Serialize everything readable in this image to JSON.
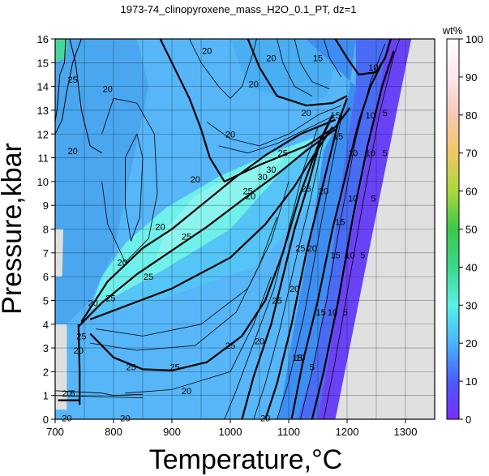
{
  "chart_data": {
    "type": "heatmap",
    "title": "1973-74_clinopyroxene_mass_H2O_0.1_PT, dz=1",
    "xlabel": "Temperature,°C",
    "ylabel": "Pressure,kbar",
    "xlim": [
      700,
      1350
    ],
    "ylim": [
      0,
      16
    ],
    "x_ticks": [
      700,
      800,
      900,
      1000,
      1100,
      1200,
      1300
    ],
    "y_ticks": [
      0,
      1,
      2,
      3,
      4,
      5,
      6,
      7,
      8,
      9,
      10,
      11,
      12,
      13,
      14,
      15,
      16
    ],
    "grid": true,
    "colorbar": {
      "label": "wt%",
      "range": [
        0,
        100
      ],
      "ticks": [
        0,
        10,
        20,
        30,
        40,
        50,
        60,
        70,
        80,
        90,
        100
      ],
      "stops": [
        {
          "value": 0,
          "color": "#7b2cff"
        },
        {
          "value": 10,
          "color": "#4b5cff"
        },
        {
          "value": 20,
          "color": "#49b4ff"
        },
        {
          "value": 30,
          "color": "#58f0e6"
        },
        {
          "value": 40,
          "color": "#3cd88a"
        },
        {
          "value": 50,
          "color": "#3cc84a"
        },
        {
          "value": 60,
          "color": "#a8d83c"
        },
        {
          "value": 70,
          "color": "#f0c864"
        },
        {
          "value": 80,
          "color": "#f8c8b4"
        },
        {
          "value": 90,
          "color": "#fce6f0"
        },
        {
          "value": 100,
          "color": "#ffffff"
        }
      ]
    },
    "no_data_color": "#e0e0e0",
    "contour_labels": [
      {
        "text": "20",
        "x": 1070,
        "y": 15.2
      },
      {
        "text": "20",
        "x": 960,
        "y": 15.5
      },
      {
        "text": "25",
        "x": 730,
        "y": 14.3
      },
      {
        "text": "20",
        "x": 790,
        "y": 13.9
      },
      {
        "text": "20",
        "x": 1040,
        "y": 14.1
      },
      {
        "text": "15",
        "x": 1150,
        "y": 15.2
      },
      {
        "text": "10",
        "x": 1245,
        "y": 14.8
      },
      {
        "text": "20",
        "x": 1130,
        "y": 12.9
      },
      {
        "text": "15",
        "x": 1180,
        "y": 12.8
      },
      {
        "text": "10",
        "x": 1240,
        "y": 12.8
      },
      {
        "text": "5",
        "x": 1265,
        "y": 12.9
      },
      {
        "text": "20",
        "x": 1000,
        "y": 12.0
      },
      {
        "text": "20",
        "x": 730,
        "y": 11.3
      },
      {
        "text": "15",
        "x": 1185,
        "y": 11.9
      },
      {
        "text": "10",
        "x": 1210,
        "y": 11.2
      },
      {
        "text": "10",
        "x": 1240,
        "y": 11.2
      },
      {
        "text": "5",
        "x": 1265,
        "y": 11.2
      },
      {
        "text": "25",
        "x": 1090,
        "y": 11.2
      },
      {
        "text": "20",
        "x": 940,
        "y": 10.1
      },
      {
        "text": "30",
        "x": 1055,
        "y": 10.2
      },
      {
        "text": "30",
        "x": 1070,
        "y": 10.5
      },
      {
        "text": "25",
        "x": 1030,
        "y": 9.6
      },
      {
        "text": "20",
        "x": 1035,
        "y": 9.4
      },
      {
        "text": "25",
        "x": 1130,
        "y": 9.7
      },
      {
        "text": "20",
        "x": 1160,
        "y": 9.6
      },
      {
        "text": "15",
        "x": 1188,
        "y": 8.3
      },
      {
        "text": "10",
        "x": 1210,
        "y": 9.3
      },
      {
        "text": "5",
        "x": 1245,
        "y": 9.3
      },
      {
        "text": "20",
        "x": 880,
        "y": 8.1
      },
      {
        "text": "25",
        "x": 925,
        "y": 7.7
      },
      {
        "text": "25",
        "x": 1120,
        "y": 7.2
      },
      {
        "text": "20",
        "x": 1140,
        "y": 7.2
      },
      {
        "text": "15",
        "x": 1180,
        "y": 6.9
      },
      {
        "text": "10",
        "x": 1205,
        "y": 6.9
      },
      {
        "text": "5",
        "x": 1227,
        "y": 6.9
      },
      {
        "text": "20",
        "x": 815,
        "y": 6.6
      },
      {
        "text": "25",
        "x": 860,
        "y": 6.0
      },
      {
        "text": "25",
        "x": 1080,
        "y": 5.0
      },
      {
        "text": "20",
        "x": 1110,
        "y": 5.5
      },
      {
        "text": "15",
        "x": 1155,
        "y": 4.5
      },
      {
        "text": "10",
        "x": 1175,
        "y": 4.5
      },
      {
        "text": "5",
        "x": 1197,
        "y": 4.5
      },
      {
        "text": "25",
        "x": 795,
        "y": 5.1
      },
      {
        "text": "20",
        "x": 765,
        "y": 4.9
      },
      {
        "text": "25",
        "x": 745,
        "y": 3.5
      },
      {
        "text": "20",
        "x": 740,
        "y": 2.9
      },
      {
        "text": "25",
        "x": 1000,
        "y": 3.1
      },
      {
        "text": "20",
        "x": 1050,
        "y": 3.3
      },
      {
        "text": "15",
        "x": 1115,
        "y": 2.6
      },
      {
        "text": "10",
        "x": 1120,
        "y": 2.6
      },
      {
        "text": "5",
        "x": 1140,
        "y": 2.2
      },
      {
        "text": "25",
        "x": 830,
        "y": 2.2
      },
      {
        "text": "25",
        "x": 905,
        "y": 2.2
      },
      {
        "text": "20",
        "x": 925,
        "y": 1.2
      },
      {
        "text": "20",
        "x": 720,
        "y": 1.1
      },
      {
        "text": "5",
        "x": 730,
        "y": 1.1
      },
      {
        "text": "20",
        "x": 720,
        "y": 0.05
      },
      {
        "text": "20",
        "x": 820,
        "y": 0.05
      },
      {
        "text": "20",
        "x": 1060,
        "y": 0.05
      }
    ]
  }
}
